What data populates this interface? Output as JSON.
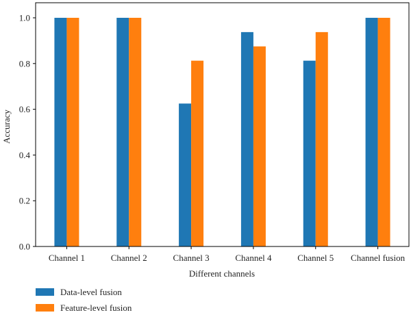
{
  "chart_data": {
    "type": "bar",
    "title": "",
    "xlabel": "Different channels",
    "ylabel": "Accuracy",
    "ylim": [
      0,
      1.0
    ],
    "yticks": [
      "0.0",
      "0.2",
      "0.4",
      "0.6",
      "0.8",
      "1.0"
    ],
    "categories": [
      "Channel 1",
      "Channel 2",
      "Channel 3",
      "Channel 4",
      "Channel 5",
      "Channel fusion"
    ],
    "series": [
      {
        "name": "Data-level fusion",
        "values": [
          1.0,
          1.0,
          0.625,
          0.9375,
          0.8125,
          1.0
        ],
        "color": "#1f77b4"
      },
      {
        "name": "Feature-level fusion",
        "values": [
          1.0,
          1.0,
          0.8125,
          0.875,
          0.9375,
          1.0
        ],
        "color": "#ff7f0e"
      }
    ],
    "grid": false,
    "legend_position": "bottom-left"
  }
}
